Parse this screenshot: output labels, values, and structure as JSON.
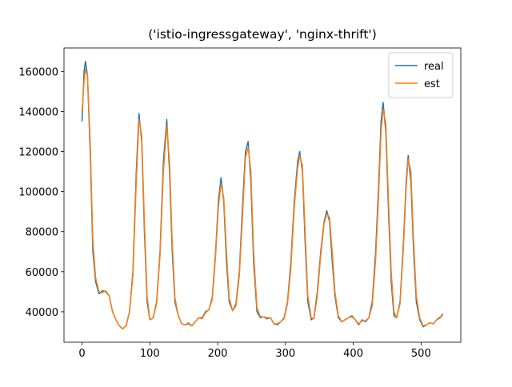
{
  "chart_data": {
    "type": "line",
    "title": "('istio-ingressgateway', 'nginx-thrift')",
    "x": [
      0,
      3,
      5,
      8,
      12,
      16,
      20,
      25,
      30,
      35,
      40,
      45,
      50,
      55,
      60,
      65,
      70,
      75,
      80,
      84,
      88,
      92,
      96,
      100,
      105,
      110,
      115,
      120,
      125,
      129,
      133,
      137,
      142,
      147,
      152,
      157,
      162,
      167,
      172,
      177,
      182,
      187,
      192,
      197,
      201,
      205,
      209,
      213,
      217,
      222,
      227,
      232,
      237,
      241,
      245,
      249,
      253,
      258,
      263,
      268,
      273,
      278,
      283,
      288,
      293,
      298,
      303,
      308,
      313,
      318,
      321,
      325,
      329,
      333,
      338,
      342,
      347,
      352,
      357,
      361,
      365,
      369,
      373,
      378,
      383,
      388,
      393,
      398,
      403,
      408,
      413,
      418,
      423,
      428,
      433,
      437,
      441,
      444,
      448,
      452,
      456,
      460,
      464,
      469,
      474,
      478,
      481,
      485,
      489,
      493,
      498,
      503,
      508,
      513,
      518,
      523,
      528,
      532
    ],
    "series": [
      {
        "name": "real",
        "color": "#1f77b4",
        "values": [
          135000,
          160000,
          165000,
          158000,
          120000,
          70000,
          55000,
          49000,
          50500,
          50000,
          48000,
          40000,
          36000,
          33000,
          31500,
          33000,
          40000,
          60000,
          110000,
          139000,
          125000,
          80000,
          45000,
          36000,
          37000,
          45000,
          70000,
          115000,
          136000,
          110000,
          70000,
          45000,
          38000,
          34000,
          33500,
          34000,
          33000,
          35000,
          37000,
          37000,
          40000,
          41000,
          47000,
          70000,
          95000,
          107000,
          95000,
          65000,
          45000,
          40500,
          44000,
          60000,
          95000,
          120000,
          125000,
          105000,
          65000,
          40000,
          37000,
          37500,
          36500,
          37000,
          34000,
          33500,
          35000,
          37000,
          45000,
          65000,
          95000,
          115000,
          120000,
          110000,
          75000,
          45000,
          36000,
          37000,
          50000,
          70000,
          85000,
          90500,
          85000,
          65000,
          48000,
          37000,
          35000,
          36000,
          37000,
          38000,
          36000,
          33500,
          36000,
          35000,
          37000,
          45000,
          70000,
          100000,
          135000,
          144500,
          130000,
          90000,
          55000,
          38000,
          37000,
          45000,
          75000,
          105000,
          118000,
          105000,
          70000,
          45000,
          36000,
          32500,
          33500,
          34500,
          34000,
          36000,
          37000,
          39000
        ]
      },
      {
        "name": "est",
        "color": "#ff7f0e",
        "values": [
          140000,
          155000,
          161000,
          158000,
          125000,
          75000,
          57000,
          50000,
          49500,
          50500,
          48000,
          40000,
          36000,
          33000,
          31500,
          33000,
          40000,
          58000,
          105000,
          136000,
          128000,
          85000,
          48000,
          36000,
          37000,
          44000,
          68000,
          110000,
          133000,
          115000,
          75000,
          47000,
          38000,
          34000,
          33500,
          34500,
          33000,
          35000,
          37000,
          36500,
          39500,
          41000,
          46000,
          68000,
          92000,
          104000,
          97000,
          70000,
          47000,
          40500,
          43000,
          58000,
          90000,
          117000,
          122000,
          110000,
          70000,
          42000,
          37500,
          37500,
          37000,
          37000,
          34000,
          34000,
          35000,
          36500,
          44000,
          62000,
          92000,
          112000,
          118000,
          113000,
          80000,
          48000,
          37000,
          36500,
          48000,
          68000,
          84000,
          89000,
          87000,
          70000,
          50000,
          38000,
          35000,
          36000,
          37000,
          37500,
          36000,
          34000,
          35500,
          35500,
          37000,
          43000,
          66000,
          95000,
          130000,
          141000,
          134000,
          95000,
          60000,
          40000,
          37000,
          44000,
          72000,
          102000,
          116000,
          110000,
          75000,
          48000,
          37000,
          33000,
          33500,
          34500,
          34000,
          36000,
          37500,
          38000
        ]
      }
    ],
    "xlim": [
      -26.6,
      558.6
    ],
    "xticks": [
      0,
      100,
      200,
      300,
      400,
      500
    ],
    "ylim": [
      24800,
      171700
    ],
    "yticks": [
      40000,
      60000,
      80000,
      100000,
      120000,
      140000,
      160000
    ],
    "legend": "upper right"
  }
}
